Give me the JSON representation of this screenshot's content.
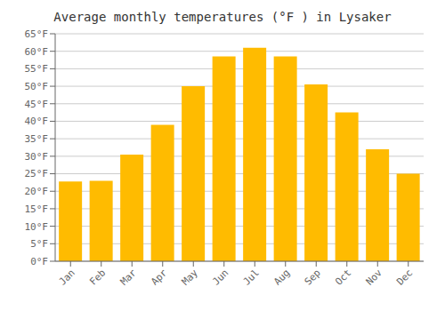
{
  "chart_data": {
    "type": "bar",
    "title": "Average monthly temperatures (°F ) in Lysaker",
    "categories": [
      "Jan",
      "Feb",
      "Mar",
      "Apr",
      "May",
      "Jun",
      "Jul",
      "Aug",
      "Sep",
      "Oct",
      "Nov",
      "Dec"
    ],
    "values": [
      22.8,
      23.0,
      30.5,
      39.0,
      50.0,
      58.5,
      61.0,
      58.5,
      50.5,
      42.5,
      32.0,
      25.0
    ],
    "color": "#FFBB00",
    "ylim": [
      0,
      65
    ],
    "yticks": [
      {
        "value": 0,
        "label": "0°F"
      },
      {
        "value": 5,
        "label": "5°F"
      },
      {
        "value": 10,
        "label": "10°F"
      },
      {
        "value": 15,
        "label": "15°F"
      },
      {
        "value": 20,
        "label": "20°F"
      },
      {
        "value": 25,
        "label": "25°F"
      },
      {
        "value": 30,
        "label": "30°F"
      },
      {
        "value": 35,
        "label": "35°F"
      },
      {
        "value": 40,
        "label": "40°F"
      },
      {
        "value": 45,
        "label": "45°F"
      },
      {
        "value": 50,
        "label": "50°F"
      },
      {
        "value": 55,
        "label": "55°F"
      },
      {
        "value": 60,
        "label": "60°F"
      },
      {
        "value": 65,
        "label": "65°F"
      }
    ],
    "grid": true
  }
}
